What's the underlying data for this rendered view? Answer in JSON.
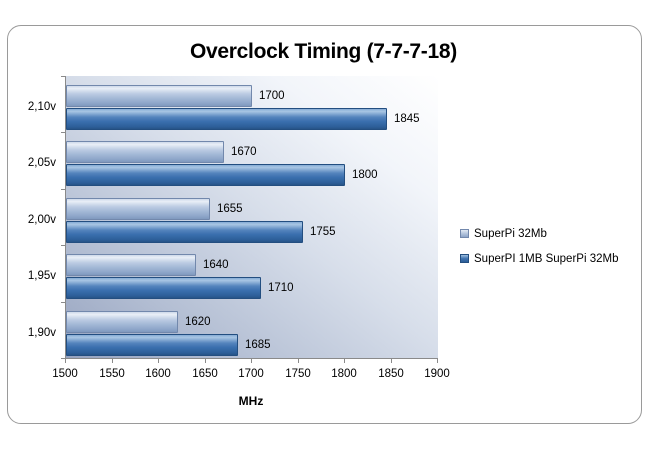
{
  "chart_data": {
    "type": "bar",
    "orientation": "horizontal",
    "title": "Overclock Timing (7-7-7-18)",
    "categories": [
      "2,10v",
      "2,05v",
      "2,00v",
      "1,95v",
      "1,90v"
    ],
    "series": [
      {
        "name": "SuperPi 32Mb",
        "values": [
          1700,
          1670,
          1655,
          1640,
          1620
        ],
        "color": "#aec3de"
      },
      {
        "name": "SuperPI 1MB SuperPi 32Mb",
        "values": [
          1845,
          1800,
          1755,
          1710,
          1685
        ],
        "color": "#3c70ab"
      }
    ],
    "xlabel": "MHz",
    "ylabel": "",
    "xlim": [
      1500,
      1900
    ],
    "xticks": [
      1500,
      1550,
      1600,
      1650,
      1700,
      1750,
      1800,
      1850,
      1900
    ],
    "value_labels": true,
    "grid": false,
    "legend_position": "right",
    "plot_background": "diagonal gradient #96a3bf (bottom-left) to #ffffff (top-right)",
    "axis_color": "#8a8a8a"
  }
}
